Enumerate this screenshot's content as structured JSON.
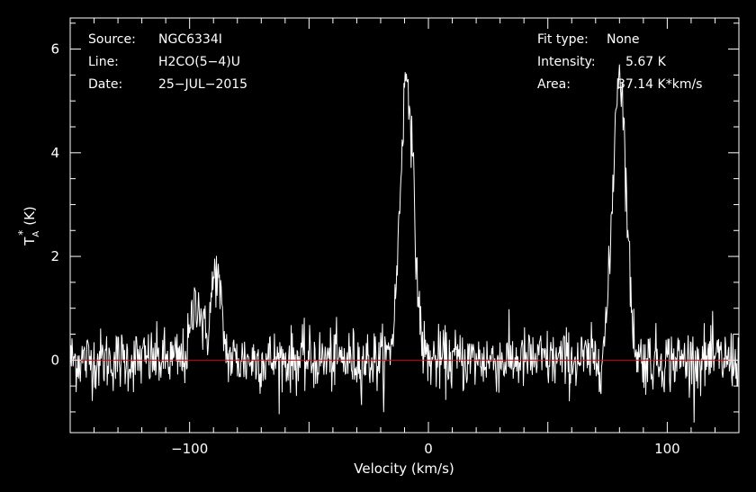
{
  "chart_data": {
    "type": "line",
    "xlabel": "Velocity (km/s)",
    "ylabel_main": "T",
    "ylabel_sup": "*",
    "ylabel_sub": "A",
    "ylabel_unit": "(K)",
    "xlim": [
      -150,
      130
    ],
    "ylim": [
      -1.4,
      6.6
    ],
    "x_ticks": [
      -100,
      0,
      100
    ],
    "x_tick_labels": [
      "−100",
      "0",
      "100"
    ],
    "y_ticks": [
      0,
      2,
      4,
      6
    ],
    "y_tick_labels": [
      "0",
      "2",
      "4",
      "6"
    ],
    "baseline": 0,
    "baseline_color": "#e00000",
    "line_color": "#ffffff",
    "noise_rms": 0.3,
    "v_start": -150,
    "v_end": 130,
    "channel_width_kms": 0.25,
    "components": [
      {
        "center": -97,
        "amplitude": 1.2,
        "fwhm": 5
      },
      {
        "center": -89,
        "amplitude": 1.7,
        "fwhm": 5
      },
      {
        "center": -9,
        "amplitude": 5.5,
        "fwhm": 6.5
      },
      {
        "center": 80,
        "amplitude": 5.6,
        "fwhm": 6.5
      }
    ]
  },
  "info": {
    "source_label": "Source:",
    "source_value": "NGC6334I",
    "line_label": "Line:",
    "line_value": "H2CO(5−4)U",
    "date_label": "Date:",
    "date_value": "25−JUL−2015",
    "fit_label": "Fit type:",
    "fit_value": "None",
    "intensity_label": "Intensity:",
    "intensity_value": "5.67 K",
    "area_label": "Area:",
    "area_value": "37.14 K*km/s"
  }
}
